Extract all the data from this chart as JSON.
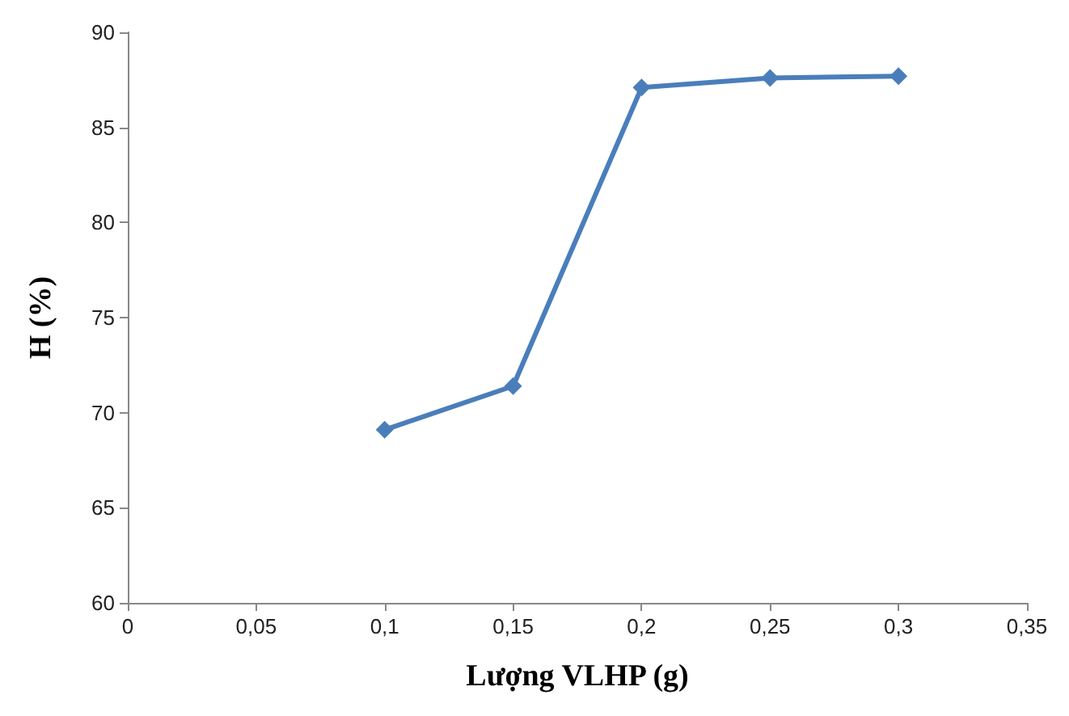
{
  "chart_data": {
    "type": "line",
    "xlabel": "Lượng VLHP (g)",
    "ylabel": "H (%)",
    "x": [
      0.1,
      0.15,
      0.2,
      0.25,
      0.3
    ],
    "series": [
      {
        "color": "#4a7ebb",
        "values": [
          69.1,
          71.4,
          87.1,
          87.6,
          87.7
        ]
      }
    ],
    "xlim": [
      0,
      0.35
    ],
    "xticks": [
      0,
      {
        "value": 0.05,
        "label": "0,05"
      },
      {
        "value": 0.1,
        "label": "0,1"
      },
      {
        "value": 0.15,
        "label": "0,15"
      },
      {
        "value": 0.2,
        "label": "0,2"
      },
      {
        "value": 0.25,
        "label": "0,25"
      },
      {
        "value": 0.3,
        "label": "0,3"
      },
      {
        "value": 0.35,
        "label": "0,35"
      }
    ],
    "ylim": [
      60,
      90
    ],
    "yticks": [
      60,
      65,
      70,
      75,
      80,
      85,
      90
    ],
    "marker": "diamond",
    "line_style": "solid"
  }
}
